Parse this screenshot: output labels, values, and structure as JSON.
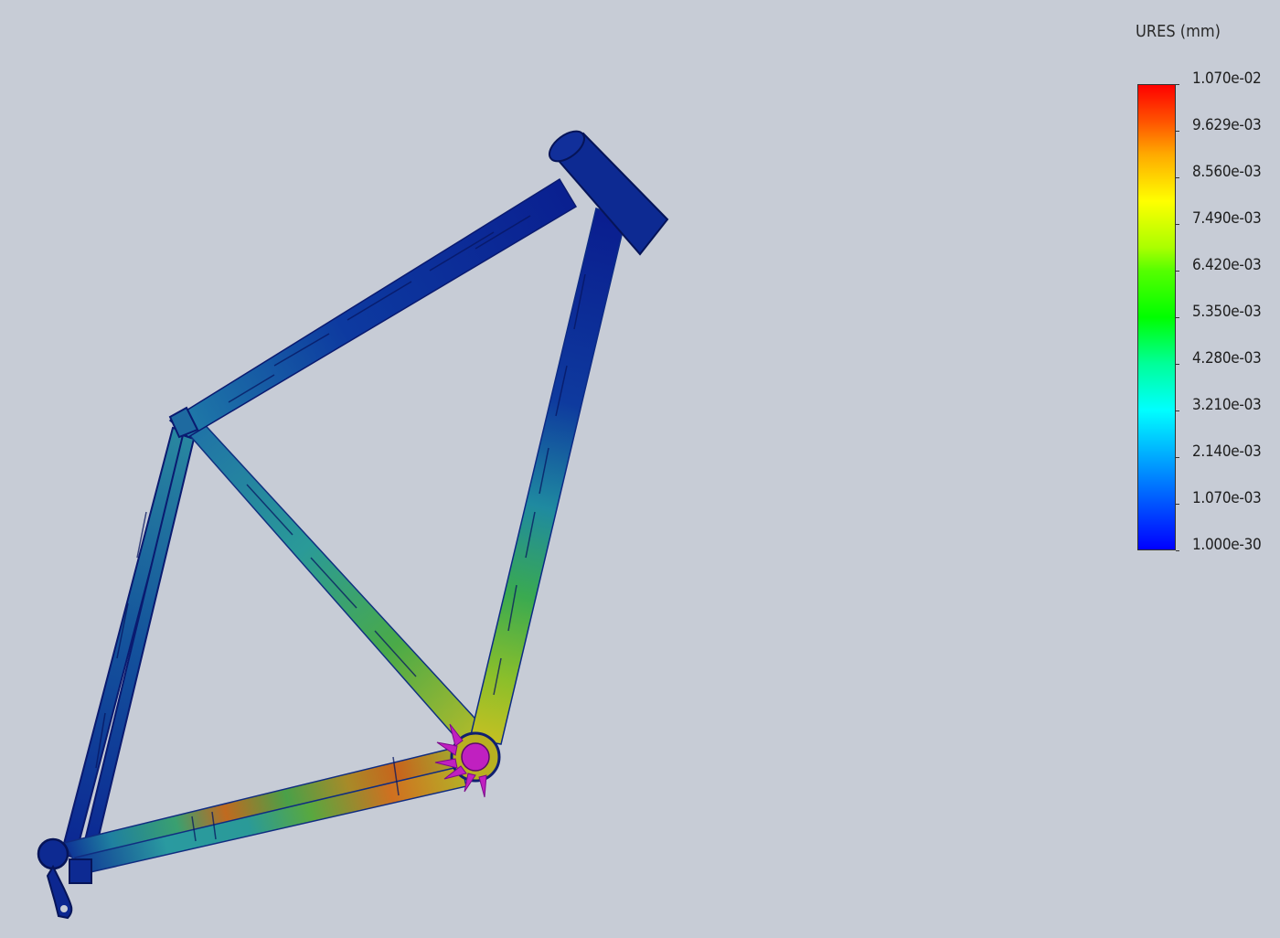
{
  "legend": {
    "title": "URES (mm)",
    "ticks": [
      "1.070e-02",
      "9.629e-03",
      "8.560e-03",
      "7.490e-03",
      "6.420e-03",
      "5.350e-03",
      "4.280e-03",
      "3.210e-03",
      "2.140e-03",
      "1.070e-03",
      "1.000e-30"
    ],
    "colormap": [
      "#0000ff",
      "#00ffff",
      "#00ff00",
      "#ffff00",
      "#ff0000"
    ]
  },
  "model": {
    "description_colors": {
      "background": "#c7ccd6",
      "low": "#0a1f8a",
      "mid": "#2aa0a0",
      "high": "#d4c020",
      "max": "#c8401a",
      "fixture": "#c020c0"
    }
  }
}
